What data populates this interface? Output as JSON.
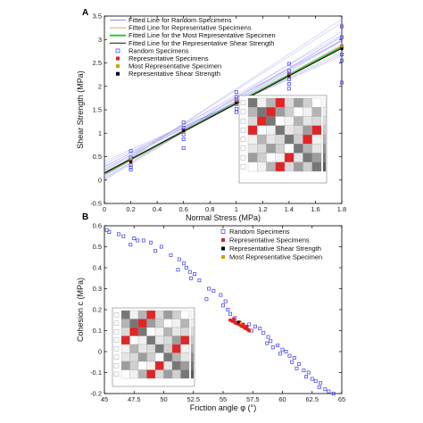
{
  "chart_data": [
    {
      "panel": "A",
      "type": "scatter",
      "xlabel": "Normal Stress (MPa)",
      "ylabel": "Shear Strength (MPa)",
      "xlim": [
        0,
        1.8
      ],
      "ylim": [
        -0.5,
        3.5
      ],
      "xticks": [
        "0",
        "0.2",
        "0.4",
        "0.6",
        "0.8",
        "1",
        "1.2",
        "1.4",
        "1.6",
        "1.8"
      ],
      "yticks": [
        "-0.5",
        "0",
        "0.5",
        "1",
        "1.5",
        "2",
        "2.5",
        "3",
        "3.5"
      ],
      "grid": false,
      "legend_position": "top-left",
      "colors": {
        "random_lines": "#8f8fe8",
        "representative_lines": "#e0a37a",
        "most_representative_line": "#22c722",
        "shear_strength_line": "#111111",
        "random_marker": "#3a3aee",
        "representative_marker": "#e01f1f",
        "most_rep_marker": "#c6a800",
        "shear_marker": "#000000"
      },
      "legend": [
        {
          "label": "Fitted Line for Random Specimens",
          "kind": "line",
          "color": "#8f8fe8"
        },
        {
          "label": "Fitted Line for Representative Specimens",
          "kind": "line",
          "color": "#e0a37a"
        },
        {
          "label": "Fitted Line for the Most Representative Specimen",
          "kind": "line",
          "color": "#22c722"
        },
        {
          "label": "Fitted Line for the Representative Shear Strength",
          "kind": "line",
          "color": "#111111"
        },
        {
          "label": "Random Specimens",
          "kind": "open-square",
          "color": "#3a3aee"
        },
        {
          "label": "Representative Specimens",
          "kind": "square",
          "color": "#e01f1f"
        },
        {
          "label": "Most Representative Specimen",
          "kind": "square",
          "color": "#c6a800"
        },
        {
          "label": "Representative Shear Strength",
          "kind": "square",
          "color": "#000000"
        }
      ],
      "fitted_lines": {
        "random": [
          {
            "c": 0.0,
            "slope": 1.7
          },
          {
            "c": 0.05,
            "slope": 1.62
          },
          {
            "c": 0.1,
            "slope": 1.6
          },
          {
            "c": 0.18,
            "slope": 1.48
          },
          {
            "c": 0.25,
            "slope": 1.42
          },
          {
            "c": 0.3,
            "slope": 1.35
          },
          {
            "c": 0.12,
            "slope": 1.8
          },
          {
            "c": 0.2,
            "slope": 1.55
          },
          {
            "c": 0.08,
            "slope": 1.66
          },
          {
            "c": 0.35,
            "slope": 1.3
          },
          {
            "c": 0.15,
            "slope": 1.52
          },
          {
            "c": 0.22,
            "slope": 1.6
          },
          {
            "c": 0.28,
            "slope": 1.5
          },
          {
            "c": 0.02,
            "slope": 1.75
          },
          {
            "c": 0.4,
            "slope": 1.25
          },
          {
            "c": 0.1,
            "slope": 1.85
          }
        ],
        "representative": [
          {
            "c": 0.12,
            "slope": 1.5
          },
          {
            "c": 0.15,
            "slope": 1.48
          },
          {
            "c": 0.13,
            "slope": 1.52
          },
          {
            "c": 0.16,
            "slope": 1.47
          }
        ],
        "most_representative": {
          "c": 0.14,
          "slope": 1.5
        },
        "representative_shear_strength": {
          "c": 0.15,
          "slope": 1.48
        }
      },
      "random_specimens": [
        {
          "x": 0.2,
          "y": 0.27
        },
        {
          "x": 0.2,
          "y": 0.32
        },
        {
          "x": 0.2,
          "y": 0.42
        },
        {
          "x": 0.2,
          "y": 0.48
        },
        {
          "x": 0.2,
          "y": 0.62
        },
        {
          "x": 0.2,
          "y": 0.22
        },
        {
          "x": 0.6,
          "y": 0.87
        },
        {
          "x": 0.6,
          "y": 0.97
        },
        {
          "x": 0.6,
          "y": 1.07
        },
        {
          "x": 0.6,
          "y": 1.12
        },
        {
          "x": 0.6,
          "y": 1.23
        },
        {
          "x": 0.6,
          "y": 0.68
        },
        {
          "x": 1.0,
          "y": 1.52
        },
        {
          "x": 1.0,
          "y": 1.62
        },
        {
          "x": 1.0,
          "y": 1.7
        },
        {
          "x": 1.0,
          "y": 1.78
        },
        {
          "x": 1.0,
          "y": 1.88
        },
        {
          "x": 1.0,
          "y": 1.45
        },
        {
          "x": 1.4,
          "y": 2.05
        },
        {
          "x": 1.4,
          "y": 2.15
        },
        {
          "x": 1.4,
          "y": 2.25
        },
        {
          "x": 1.4,
          "y": 2.33
        },
        {
          "x": 1.4,
          "y": 2.48
        },
        {
          "x": 1.4,
          "y": 1.95
        },
        {
          "x": 1.8,
          "y": 2.08
        },
        {
          "x": 1.8,
          "y": 2.55
        },
        {
          "x": 1.8,
          "y": 2.68
        },
        {
          "x": 1.8,
          "y": 2.85
        },
        {
          "x": 1.8,
          "y": 3.05
        },
        {
          "x": 1.8,
          "y": 3.28
        }
      ],
      "representative_specimens": [
        {
          "x": 0.2,
          "y": 0.42
        },
        {
          "x": 0.6,
          "y": 1.05
        },
        {
          "x": 1.0,
          "y": 1.67
        },
        {
          "x": 1.4,
          "y": 2.25
        },
        {
          "x": 1.8,
          "y": 2.82
        }
      ],
      "most_representative_specimen": [
        {
          "x": 0.2,
          "y": 0.44
        },
        {
          "x": 0.6,
          "y": 1.04
        },
        {
          "x": 1.0,
          "y": 1.66
        },
        {
          "x": 1.4,
          "y": 2.24
        },
        {
          "x": 1.8,
          "y": 2.85
        }
      ],
      "representative_shear_strength": [
        {
          "x": 0.2,
          "y": 0.39
        },
        {
          "x": 0.6,
          "y": 1.05
        },
        {
          "x": 1.0,
          "y": 1.64
        },
        {
          "x": 1.4,
          "y": 2.22
        },
        {
          "x": 1.8,
          "y": 2.8
        }
      ]
    },
    {
      "panel": "B",
      "type": "scatter",
      "xlabel": "Friction angle φ (°)",
      "ylabel": "Cohesion c (MPa)",
      "xlim": [
        45,
        65
      ],
      "ylim": [
        -0.2,
        0.6
      ],
      "xticks": [
        "45",
        "47.5",
        "50",
        "52.5",
        "55",
        "57.5",
        "60",
        "62.5",
        "65"
      ],
      "yticks": [
        "-0.2",
        "-0.1",
        "0",
        "0.1",
        "0.2",
        "0.3",
        "0.4",
        "0.5",
        "0.6"
      ],
      "grid": false,
      "legend_position": "top-right",
      "legend": [
        {
          "label": "Random Specimens",
          "kind": "open-square",
          "color": "#3a3aee"
        },
        {
          "label": "Representative Specimens",
          "kind": "square",
          "color": "#e01f1f"
        },
        {
          "label": "Representative Shear Strength",
          "kind": "square",
          "color": "#000000"
        },
        {
          "label": "Most Representative Specimen",
          "kind": "square",
          "color": "#c6a800"
        }
      ],
      "random_specimens": [
        {
          "x": 45.2,
          "y": 0.58
        },
        {
          "x": 45.4,
          "y": 0.57
        },
        {
          "x": 46.2,
          "y": 0.56
        },
        {
          "x": 46.6,
          "y": 0.55
        },
        {
          "x": 47.5,
          "y": 0.54
        },
        {
          "x": 47.8,
          "y": 0.53
        },
        {
          "x": 48.3,
          "y": 0.53
        },
        {
          "x": 48.9,
          "y": 0.52
        },
        {
          "x": 47.2,
          "y": 0.51
        },
        {
          "x": 49.8,
          "y": 0.5
        },
        {
          "x": 49.3,
          "y": 0.48
        },
        {
          "x": 50.6,
          "y": 0.46
        },
        {
          "x": 51.3,
          "y": 0.44
        },
        {
          "x": 51.7,
          "y": 0.42
        },
        {
          "x": 51.9,
          "y": 0.4
        },
        {
          "x": 51.2,
          "y": 0.39
        },
        {
          "x": 52.2,
          "y": 0.38
        },
        {
          "x": 52.6,
          "y": 0.37
        },
        {
          "x": 52.3,
          "y": 0.35
        },
        {
          "x": 53.0,
          "y": 0.34
        },
        {
          "x": 53.8,
          "y": 0.3
        },
        {
          "x": 54.2,
          "y": 0.29
        },
        {
          "x": 54.8,
          "y": 0.27
        },
        {
          "x": 53.6,
          "y": 0.25
        },
        {
          "x": 55.2,
          "y": 0.24
        },
        {
          "x": 55.0,
          "y": 0.22
        },
        {
          "x": 55.4,
          "y": 0.2
        },
        {
          "x": 55.6,
          "y": 0.18
        },
        {
          "x": 56.0,
          "y": 0.16
        },
        {
          "x": 56.3,
          "y": 0.14
        },
        {
          "x": 57.2,
          "y": 0.13
        },
        {
          "x": 57.7,
          "y": 0.12
        },
        {
          "x": 58.1,
          "y": 0.11
        },
        {
          "x": 57.4,
          "y": 0.1
        },
        {
          "x": 58.4,
          "y": 0.09
        },
        {
          "x": 58.8,
          "y": 0.07
        },
        {
          "x": 59.0,
          "y": 0.05
        },
        {
          "x": 58.7,
          "y": 0.04
        },
        {
          "x": 59.6,
          "y": 0.03
        },
        {
          "x": 59.2,
          "y": 0.02
        },
        {
          "x": 60.0,
          "y": 0.01
        },
        {
          "x": 60.3,
          "y": 0.0
        },
        {
          "x": 59.8,
          "y": -0.01
        },
        {
          "x": 60.6,
          "y": -0.02
        },
        {
          "x": 61.0,
          "y": -0.03
        },
        {
          "x": 60.8,
          "y": -0.05
        },
        {
          "x": 61.4,
          "y": -0.06
        },
        {
          "x": 61.2,
          "y": -0.08
        },
        {
          "x": 61.8,
          "y": -0.09
        },
        {
          "x": 62.2,
          "y": -0.1
        },
        {
          "x": 62.0,
          "y": -0.12
        },
        {
          "x": 62.5,
          "y": -0.13
        },
        {
          "x": 62.8,
          "y": -0.14
        },
        {
          "x": 63.2,
          "y": -0.15
        },
        {
          "x": 63.1,
          "y": -0.17
        },
        {
          "x": 63.6,
          "y": -0.18
        },
        {
          "x": 63.9,
          "y": -0.19
        },
        {
          "x": 64.3,
          "y": -0.2
        }
      ],
      "representative_specimens": [
        {
          "x": 55.6,
          "y": 0.15
        },
        {
          "x": 55.8,
          "y": 0.145
        },
        {
          "x": 56.0,
          "y": 0.14
        },
        {
          "x": 56.1,
          "y": 0.135
        },
        {
          "x": 56.3,
          "y": 0.13
        },
        {
          "x": 56.5,
          "y": 0.125
        },
        {
          "x": 56.6,
          "y": 0.12
        },
        {
          "x": 56.8,
          "y": 0.115
        },
        {
          "x": 56.9,
          "y": 0.11
        },
        {
          "x": 57.1,
          "y": 0.105
        },
        {
          "x": 57.2,
          "y": 0.1
        },
        {
          "x": 55.9,
          "y": 0.155
        },
        {
          "x": 56.4,
          "y": 0.14
        },
        {
          "x": 56.7,
          "y": 0.13
        },
        {
          "x": 57.0,
          "y": 0.12
        }
      ],
      "representative_shear_strength": [
        {
          "x": 56.3,
          "y": 0.14
        }
      ],
      "most_representative_specimen": [
        {
          "x": 56.5,
          "y": 0.135
        }
      ]
    }
  ]
}
